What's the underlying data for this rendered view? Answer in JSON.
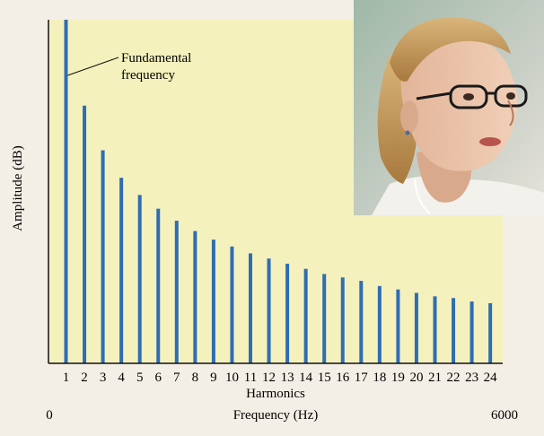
{
  "chart_data": {
    "type": "bar",
    "categories": [
      "1",
      "2",
      "3",
      "4",
      "5",
      "6",
      "7",
      "8",
      "9",
      "10",
      "11",
      "12",
      "13",
      "14",
      "15",
      "16",
      "17",
      "18",
      "19",
      "20",
      "21",
      "22",
      "23",
      "24"
    ],
    "values": [
      100,
      75,
      62,
      54,
      49,
      45,
      41.5,
      38.5,
      36,
      34,
      32,
      30.5,
      29,
      27.5,
      26,
      25,
      24,
      22.5,
      21.5,
      20.5,
      19.5,
      19,
      18,
      17.5
    ],
    "ylabel": "Amplitude (dB)",
    "xlabel": "Harmonics",
    "ylim": [
      0,
      100
    ],
    "grid": false,
    "legend": "none",
    "colors": {
      "background": "#f4efe6",
      "plot_area": "#f4f1bd",
      "bar": "#2f6db3",
      "axis": "#111111"
    },
    "secondary_axis": {
      "label": "Frequency (Hz)",
      "min_label": "0",
      "max_label": "6000"
    },
    "annotations": [
      {
        "text": "Fundamental\nfrequency",
        "target_category": "1"
      }
    ]
  },
  "photo": {
    "subject": "young woman with glasses speaking",
    "icon": "photo-portrait"
  }
}
